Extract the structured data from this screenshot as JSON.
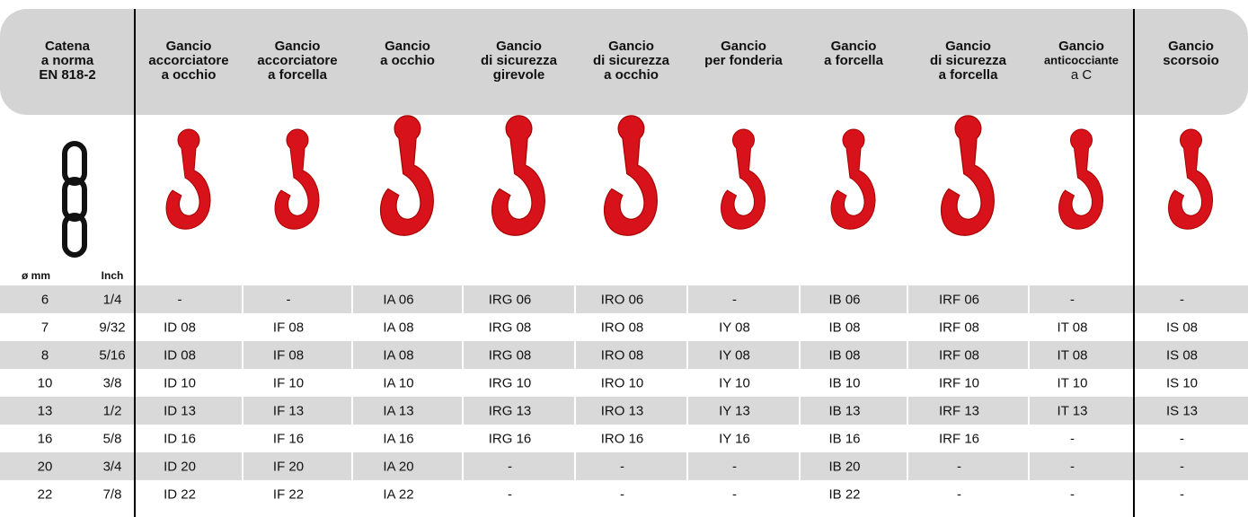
{
  "table": {
    "headers": [
      [
        "Catena",
        "a norma",
        "EN 818-2"
      ],
      [
        "Gancio",
        "accorciatore",
        "a occhio"
      ],
      [
        "Gancio",
        "accorciatore",
        "a forcella"
      ],
      [
        "Gancio",
        "a occhio"
      ],
      [
        "Gancio",
        "di sicurezza",
        "girevole"
      ],
      [
        "Gancio",
        "di sicurezza",
        "a occhio"
      ],
      [
        "Gancio",
        "per fonderia"
      ],
      [
        "Gancio",
        "a forcella"
      ],
      [
        "Gancio",
        "di sicurezza",
        "a forcella"
      ],
      [
        "Gancio",
        "anticocciante",
        "a C"
      ],
      [
        "Gancio",
        "scorsoio"
      ]
    ],
    "subheaders": [
      "ø mm",
      "Inch"
    ],
    "rows": [
      [
        "6",
        "1/4",
        "-",
        "-",
        "IA 06",
        "IRG 06",
        "IRO 06",
        "-",
        "IB 06",
        "IRF 06",
        "-",
        "-"
      ],
      [
        "7",
        "9/32",
        "ID 08",
        "IF 08",
        "IA 08",
        "IRG 08",
        "IRO 08",
        "IY 08",
        "IB 08",
        "IRF 08",
        "IT 08",
        "IS 08"
      ],
      [
        "8",
        "5/16",
        "ID 08",
        "IF 08",
        "IA 08",
        "IRG 08",
        "IRO 08",
        "IY 08",
        "IB 08",
        "IRF 08",
        "IT 08",
        "IS 08"
      ],
      [
        "10",
        "3/8",
        "ID 10",
        "IF 10",
        "IA 10",
        "IRG 10",
        "IRO 10",
        "IY 10",
        "IB 10",
        "IRF 10",
        "IT 10",
        "IS 10"
      ],
      [
        "13",
        "1/2",
        "ID 13",
        "IF 13",
        "IA 13",
        "IRG 13",
        "IRO 13",
        "IY 13",
        "IB 13",
        "IRF 13",
        "IT 13",
        "IS 13"
      ],
      [
        "16",
        "5/8",
        "ID 16",
        "IF 16",
        "IA 16",
        "IRG 16",
        "IRO 16",
        "IY 16",
        "IB 16",
        "IRF 16",
        "-",
        "-"
      ],
      [
        "20",
        "3/4",
        "ID 20",
        "IF 20",
        "IA 20",
        "-",
        "-",
        "-",
        "IB 20",
        "-",
        "-",
        "-"
      ],
      [
        "22",
        "7/8",
        "ID 22",
        "IF 22",
        "IA 22",
        "-",
        "-",
        "-",
        "IB 22",
        "-",
        "-",
        "-"
      ]
    ]
  }
}
